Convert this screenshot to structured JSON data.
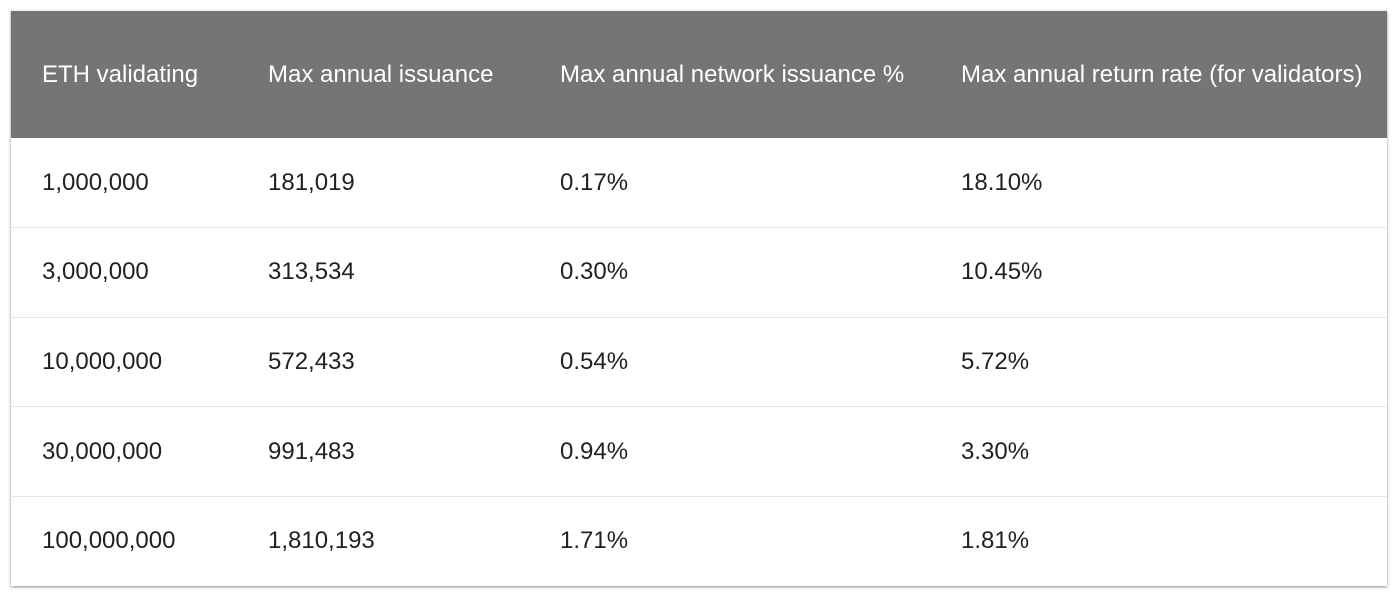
{
  "table": {
    "headers": [
      "ETH validating",
      "Max annual issuance",
      "Max annual network issuance %",
      "Max annual return rate (for validators)"
    ],
    "rows": [
      [
        "1,000,000",
        "181,019",
        "0.17%",
        "18.10%"
      ],
      [
        "3,000,000",
        "313,534",
        "0.30%",
        "10.45%"
      ],
      [
        "10,000,000",
        "572,433",
        "0.54%",
        "5.72%"
      ],
      [
        "30,000,000",
        "991,483",
        "0.94%",
        "3.30%"
      ],
      [
        "100,000,000",
        "1,810,193",
        "1.71%",
        "1.81%"
      ]
    ]
  },
  "colors": {
    "header_bg": "#757575",
    "header_text": "#ffffff",
    "row_border": "#e6e6e6"
  }
}
